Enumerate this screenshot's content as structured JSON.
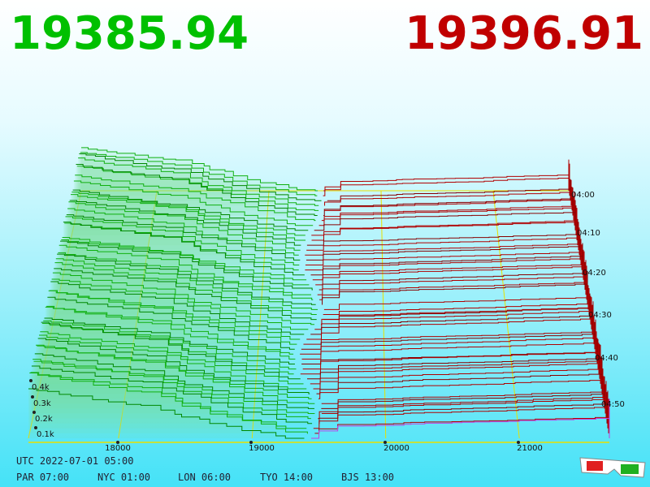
{
  "bid_price": "19385.94",
  "ask_price": "19396.91",
  "price_axis": {
    "ticks": [
      "18000",
      "19000",
      "20000",
      "21000"
    ]
  },
  "depth_axis": {
    "ticks": [
      "0.4k",
      "0.3k",
      "0.2k",
      "0.1k"
    ]
  },
  "time_axis": {
    "ticks": [
      "04:00",
      "04:10",
      "04:20",
      "04:30",
      "04:40",
      "04:50"
    ]
  },
  "footer": {
    "utc": "UTC 2022-07-01 05:00",
    "zones": [
      "PAR 07:00",
      "NYC 01:00",
      "LON 06:00",
      "TYO 14:00",
      "BJS 13:00"
    ]
  }
}
